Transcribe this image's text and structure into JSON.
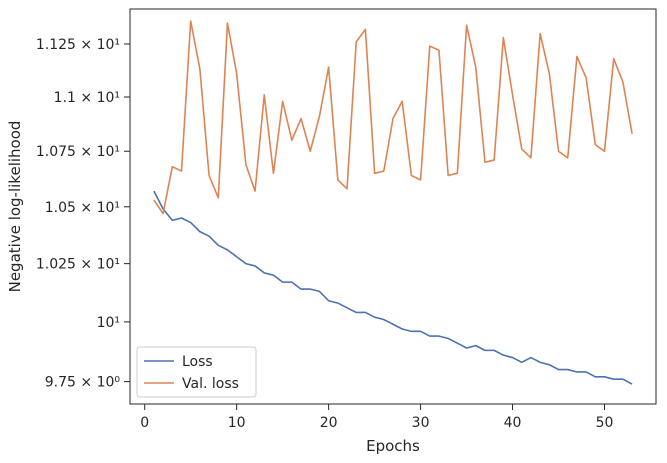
{
  "chart_data": {
    "type": "line",
    "xlabel": "Epochs",
    "ylabel": "Negative log-likelihood",
    "y_scale": "log",
    "xlim": [
      -1.6,
      55.6
    ],
    "ylim": [
      9.658,
      11.418
    ],
    "x_ticks": [
      {
        "value": 0,
        "label": "0"
      },
      {
        "value": 10,
        "label": "10"
      },
      {
        "value": 20,
        "label": "20"
      },
      {
        "value": 30,
        "label": "30"
      },
      {
        "value": 40,
        "label": "40"
      },
      {
        "value": 50,
        "label": "50"
      }
    ],
    "y_ticks": [
      {
        "value": 9.75,
        "label": "9.75 × 10⁰"
      },
      {
        "value": 10.0,
        "label": "10¹"
      },
      {
        "value": 10.25,
        "label": "1.025 × 10¹"
      },
      {
        "value": 10.5,
        "label": "1.05 × 10¹"
      },
      {
        "value": 10.75,
        "label": "1.075 × 10¹"
      },
      {
        "value": 11.0,
        "label": "1.1 × 10¹"
      },
      {
        "value": 11.25,
        "label": "1.125 × 10¹"
      }
    ],
    "grid": false,
    "legend_position": "lower-left",
    "x": [
      1,
      2,
      3,
      4,
      5,
      6,
      7,
      8,
      9,
      10,
      11,
      12,
      13,
      14,
      15,
      16,
      17,
      18,
      19,
      20,
      21,
      22,
      23,
      24,
      25,
      26,
      27,
      28,
      29,
      30,
      31,
      32,
      33,
      34,
      35,
      36,
      37,
      38,
      39,
      40,
      41,
      42,
      43,
      44,
      45,
      46,
      47,
      48,
      49,
      50,
      51,
      52,
      53
    ],
    "series": [
      {
        "name": "Loss",
        "color": "#4c72b0",
        "values": [
          10.57,
          10.49,
          10.44,
          10.45,
          10.43,
          10.39,
          10.37,
          10.33,
          10.31,
          10.28,
          10.25,
          10.24,
          10.21,
          10.2,
          10.17,
          10.17,
          10.14,
          10.14,
          10.13,
          10.09,
          10.08,
          10.06,
          10.04,
          10.04,
          10.02,
          10.01,
          9.99,
          9.97,
          9.96,
          9.96,
          9.94,
          9.94,
          9.93,
          9.91,
          9.89,
          9.9,
          9.88,
          9.88,
          9.86,
          9.85,
          9.83,
          9.85,
          9.83,
          9.82,
          9.8,
          9.8,
          9.79,
          9.79,
          9.77,
          9.77,
          9.76,
          9.76,
          9.74
        ]
      },
      {
        "name": "Val. loss",
        "color": "#dd8452",
        "values": [
          10.53,
          10.47,
          10.68,
          10.66,
          11.36,
          11.13,
          10.64,
          10.54,
          11.35,
          11.11,
          10.69,
          10.57,
          11.01,
          10.65,
          10.98,
          10.8,
          10.9,
          10.75,
          10.91,
          11.14,
          10.62,
          10.58,
          11.26,
          11.32,
          10.65,
          10.66,
          10.9,
          10.98,
          10.64,
          10.62,
          11.24,
          11.22,
          10.64,
          10.65,
          11.34,
          11.14,
          10.7,
          10.71,
          11.28,
          11.01,
          10.76,
          10.72,
          11.3,
          11.11,
          10.75,
          10.72,
          11.19,
          11.09,
          10.78,
          10.75,
          11.18,
          11.07,
          10.83
        ]
      }
    ]
  }
}
